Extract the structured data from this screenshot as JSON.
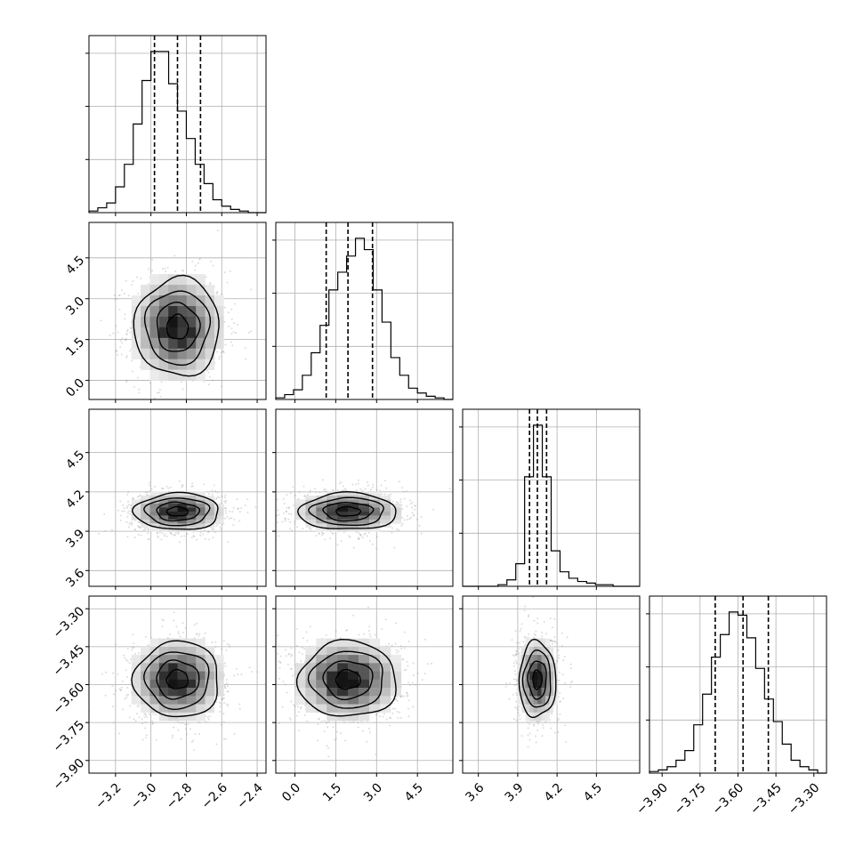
{
  "chart_data": {
    "type": "corner",
    "parameters": 4,
    "grid": true,
    "quantiles": [
      0.16,
      0.5,
      0.84
    ],
    "panels": [
      {
        "kind": "hist",
        "param": 0,
        "xlim": [
          -3.35,
          -2.35
        ],
        "quantile_values": [
          -2.98,
          -2.85,
          -2.72
        ]
      },
      {
        "kind": "hist",
        "param": 1,
        "xlim": [
          -0.7,
          5.8
        ],
        "quantile_values": [
          1.15,
          1.95,
          2.85
        ]
      },
      {
        "kind": "hist",
        "param": 2,
        "xlim": [
          3.48,
          4.83
        ],
        "quantile_values": [
          3.99,
          4.05,
          4.12
        ]
      },
      {
        "kind": "hist",
        "param": 3,
        "xlim": [
          -3.95,
          -3.25
        ],
        "quantile_values": [
          -3.69,
          -3.58,
          -3.48
        ]
      }
    ],
    "histograms": [
      {
        "param": 0,
        "bin_edges": [
          -3.35,
          -3.3,
          -3.25,
          -3.2,
          -3.15,
          -3.1,
          -3.05,
          -3.0,
          -2.95,
          -2.9,
          -2.85,
          -2.8,
          -2.75,
          -2.7,
          -2.65,
          -2.6,
          -2.55,
          -2.5,
          -2.45,
          -2.4,
          -2.35
        ],
        "counts": [
          1,
          3,
          6,
          16,
          30,
          55,
          82,
          100,
          100,
          80,
          63,
          46,
          30,
          18,
          8,
          4,
          2,
          1,
          0,
          0
        ]
      },
      {
        "param": 1,
        "bin_edges": [
          -0.7,
          -0.375,
          -0.05,
          0.275,
          0.6,
          0.925,
          1.25,
          1.575,
          1.9,
          2.225,
          2.55,
          2.875,
          3.2,
          3.525,
          3.85,
          4.175,
          4.5,
          4.825,
          5.15,
          5.475,
          5.8
        ],
        "counts": [
          1,
          3,
          6,
          15,
          29,
          46,
          68,
          79,
          89,
          100,
          93,
          68,
          48,
          26,
          15,
          7,
          4,
          2,
          1,
          0
        ]
      },
      {
        "param": 2,
        "bin_edges": [
          3.48,
          3.5475,
          3.615,
          3.6825,
          3.75,
          3.8175,
          3.885,
          3.9525,
          4.02,
          4.0875,
          4.155,
          4.2225,
          4.29,
          4.3575,
          4.425,
          4.4925,
          4.56,
          4.6275,
          4.695,
          4.7625,
          4.83
        ],
        "counts": [
          0,
          0,
          0,
          0,
          1,
          4,
          14,
          68,
          100,
          68,
          22,
          9,
          5,
          3,
          2,
          1,
          1,
          0,
          0,
          0
        ]
      },
      {
        "param": 3,
        "bin_edges": [
          -3.95,
          -3.915,
          -3.88,
          -3.845,
          -3.81,
          -3.775,
          -3.74,
          -3.705,
          -3.67,
          -3.635,
          -3.6,
          -3.565,
          -3.53,
          -3.495,
          -3.46,
          -3.425,
          -3.39,
          -3.355,
          -3.32,
          -3.285,
          -3.25
        ],
        "counts": [
          1,
          2,
          4,
          8,
          14,
          30,
          49,
          72,
          86,
          100,
          98,
          84,
          65,
          46,
          32,
          18,
          8,
          4,
          2,
          0
        ]
      }
    ],
    "scatter_panels": [
      {
        "x_param": 0,
        "y_param": 1,
        "xlim": [
          -3.35,
          -2.35
        ],
        "ylim": [
          -0.7,
          5.8
        ],
        "center": [
          -2.85,
          1.95
        ],
        "sd": [
          0.12,
          0.9
        ],
        "corr": 0.0,
        "mode": [
          -2.85,
          1.95
        ]
      },
      {
        "x_param": 0,
        "y_param": 2,
        "xlim": [
          -3.35,
          -2.35
        ],
        "ylim": [
          3.48,
          4.83
        ],
        "center": [
          -2.85,
          4.05
        ],
        "sd": [
          0.12,
          0.07
        ],
        "corr": 0.0,
        "mode": [
          -2.85,
          4.05
        ]
      },
      {
        "x_param": 1,
        "y_param": 2,
        "xlim": [
          -0.7,
          5.8
        ],
        "ylim": [
          3.48,
          4.83
        ],
        "center": [
          1.95,
          4.05
        ],
        "sd": [
          0.9,
          0.07
        ],
        "corr": 0.0,
        "mode": [
          1.95,
          4.05
        ]
      },
      {
        "x_param": 0,
        "y_param": 3,
        "xlim": [
          -3.35,
          -2.35
        ],
        "ylim": [
          -3.95,
          -3.25
        ],
        "center": [
          -2.85,
          -3.58
        ],
        "sd": [
          0.12,
          0.075
        ],
        "corr": 0.0,
        "mode": [
          -2.85,
          -3.58
        ]
      },
      {
        "x_param": 1,
        "y_param": 3,
        "xlim": [
          -0.7,
          5.8
        ],
        "ylim": [
          -3.95,
          -3.25
        ],
        "center": [
          1.95,
          -3.58
        ],
        "sd": [
          0.9,
          0.075
        ],
        "corr": 0.0,
        "mode": [
          1.95,
          -3.58
        ]
      },
      {
        "x_param": 2,
        "y_param": 3,
        "xlim": [
          3.48,
          4.83
        ],
        "ylim": [
          -3.95,
          -3.25
        ],
        "center": [
          4.05,
          -3.58
        ],
        "sd": [
          0.07,
          0.075
        ],
        "corr": 0.0,
        "mode": [
          4.05,
          -3.58
        ]
      }
    ],
    "contour_levels_sigma": [
      0.5,
      1.0,
      1.5,
      2.0
    ],
    "x_ticks": [
      {
        "param": 0,
        "values": [
          -3.2,
          -3.0,
          -2.8,
          -2.6,
          -2.4
        ],
        "labels": [
          "−3.2",
          "−3.0",
          "−2.8",
          "−2.6",
          "−2.4"
        ]
      },
      {
        "param": 1,
        "values": [
          0.0,
          1.5,
          3.0,
          4.5
        ],
        "labels": [
          "0.0",
          "1.5",
          "3.0",
          "4.5"
        ]
      },
      {
        "param": 2,
        "values": [
          3.6,
          3.9,
          4.2,
          4.5
        ],
        "labels": [
          "3.6",
          "3.9",
          "4.2",
          "4.5"
        ]
      },
      {
        "param": 3,
        "values": [
          -3.9,
          -3.75,
          -3.6,
          -3.45,
          -3.3
        ],
        "labels": [
          "−3.90",
          "−3.75",
          "−3.60",
          "−3.45",
          "−3.30"
        ]
      }
    ],
    "y_ticks": [
      {
        "param": 1,
        "values": [
          0.0,
          1.5,
          3.0,
          4.5
        ],
        "labels": [
          "0.0",
          "1.5",
          "3.0",
          "4.5"
        ]
      },
      {
        "param": 2,
        "values": [
          3.6,
          3.9,
          4.2,
          4.5
        ],
        "labels": [
          "3.6",
          "3.9",
          "4.2",
          "4.5"
        ]
      },
      {
        "param": 3,
        "values": [
          -3.9,
          -3.75,
          -3.6,
          -3.45,
          -3.3
        ],
        "labels": [
          "−3.90",
          "−3.75",
          "−3.60",
          "−3.45",
          "−3.30"
        ]
      }
    ],
    "colors": {
      "line": "#000000",
      "scatter": "#9a9a9a",
      "grid": "#b0b0b0"
    }
  }
}
